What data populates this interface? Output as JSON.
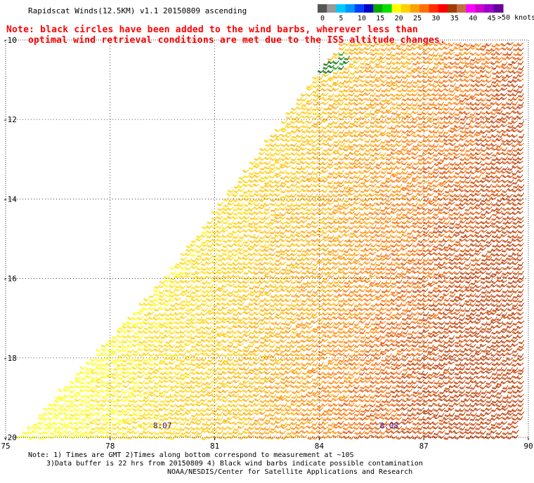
{
  "header": {
    "title": "Rapidscat Winds(12.5KM) v1.1 20150809 ascending",
    "note_line1": "Note: black circles have been added to the wind barbs, wherever less than",
    "note_line2": "optimal wind retrieval conditions are met due to the ISS altitude changes."
  },
  "legend": {
    "units": ">50 knots",
    "bins": [
      {
        "label": "0",
        "color": "#555555"
      },
      {
        "label": "",
        "color": "#999999"
      },
      {
        "label": "5",
        "color": "#00c8ff"
      },
      {
        "label": "",
        "color": "#0096ff"
      },
      {
        "label": "10",
        "color": "#0040ff"
      },
      {
        "label": "",
        "color": "#0000c8"
      },
      {
        "label": "15",
        "color": "#00aa00"
      },
      {
        "label": "",
        "color": "#00e000"
      },
      {
        "label": "20",
        "color": "#ffff00"
      },
      {
        "label": "",
        "color": "#ffd000"
      },
      {
        "label": "25",
        "color": "#ffa000"
      },
      {
        "label": "",
        "color": "#ff7000"
      },
      {
        "label": "30",
        "color": "#ff3000"
      },
      {
        "label": "",
        "color": "#ff0000"
      },
      {
        "label": "35",
        "color": "#a03c00"
      },
      {
        "label": "",
        "color": "#c07040"
      },
      {
        "label": "40",
        "color": "#ff00ff"
      },
      {
        "label": "",
        "color": "#cc00cc"
      },
      {
        "label": "45",
        "color": "#9900cc"
      },
      {
        "label": "",
        "color": "#660099"
      }
    ]
  },
  "chart_data": {
    "type": "wind barb map",
    "x_axis": {
      "ticks": [
        "75",
        "78",
        "81",
        "84",
        "87",
        "90"
      ],
      "range": [
        75,
        90
      ]
    },
    "y_axis": {
      "ticks": [
        "-10",
        "-12",
        "-14",
        "-16",
        "-18",
        "-20"
      ],
      "range": [
        -20,
        -10
      ]
    },
    "grid": "dotted",
    "time_labels": [
      {
        "label": "8:07",
        "lon": 79.5
      },
      {
        "label": "8:08",
        "lon": 86.0
      }
    ],
    "swath_corners": [
      {
        "lon": 75.4,
        "lat": -20
      },
      {
        "lon": 79.6,
        "lat": -16
      },
      {
        "lon": 84.7,
        "lat": -10
      },
      {
        "lon": 90,
        "lat": -10
      },
      {
        "lon": 90,
        "lat": -19.3
      },
      {
        "lon": 89.7,
        "lat": -20
      }
    ]
  },
  "footer": {
    "line1": "Note: 1) Times are GMT 2)Times along bottom correspond to measurement at ~10S",
    "line2": "3)Data buffer is 22 hrs from 20150809 4) Black wind barbs indicate possible contamination",
    "line3": "NOAA/NESDIS/Center for Satellite Applications and Research"
  }
}
